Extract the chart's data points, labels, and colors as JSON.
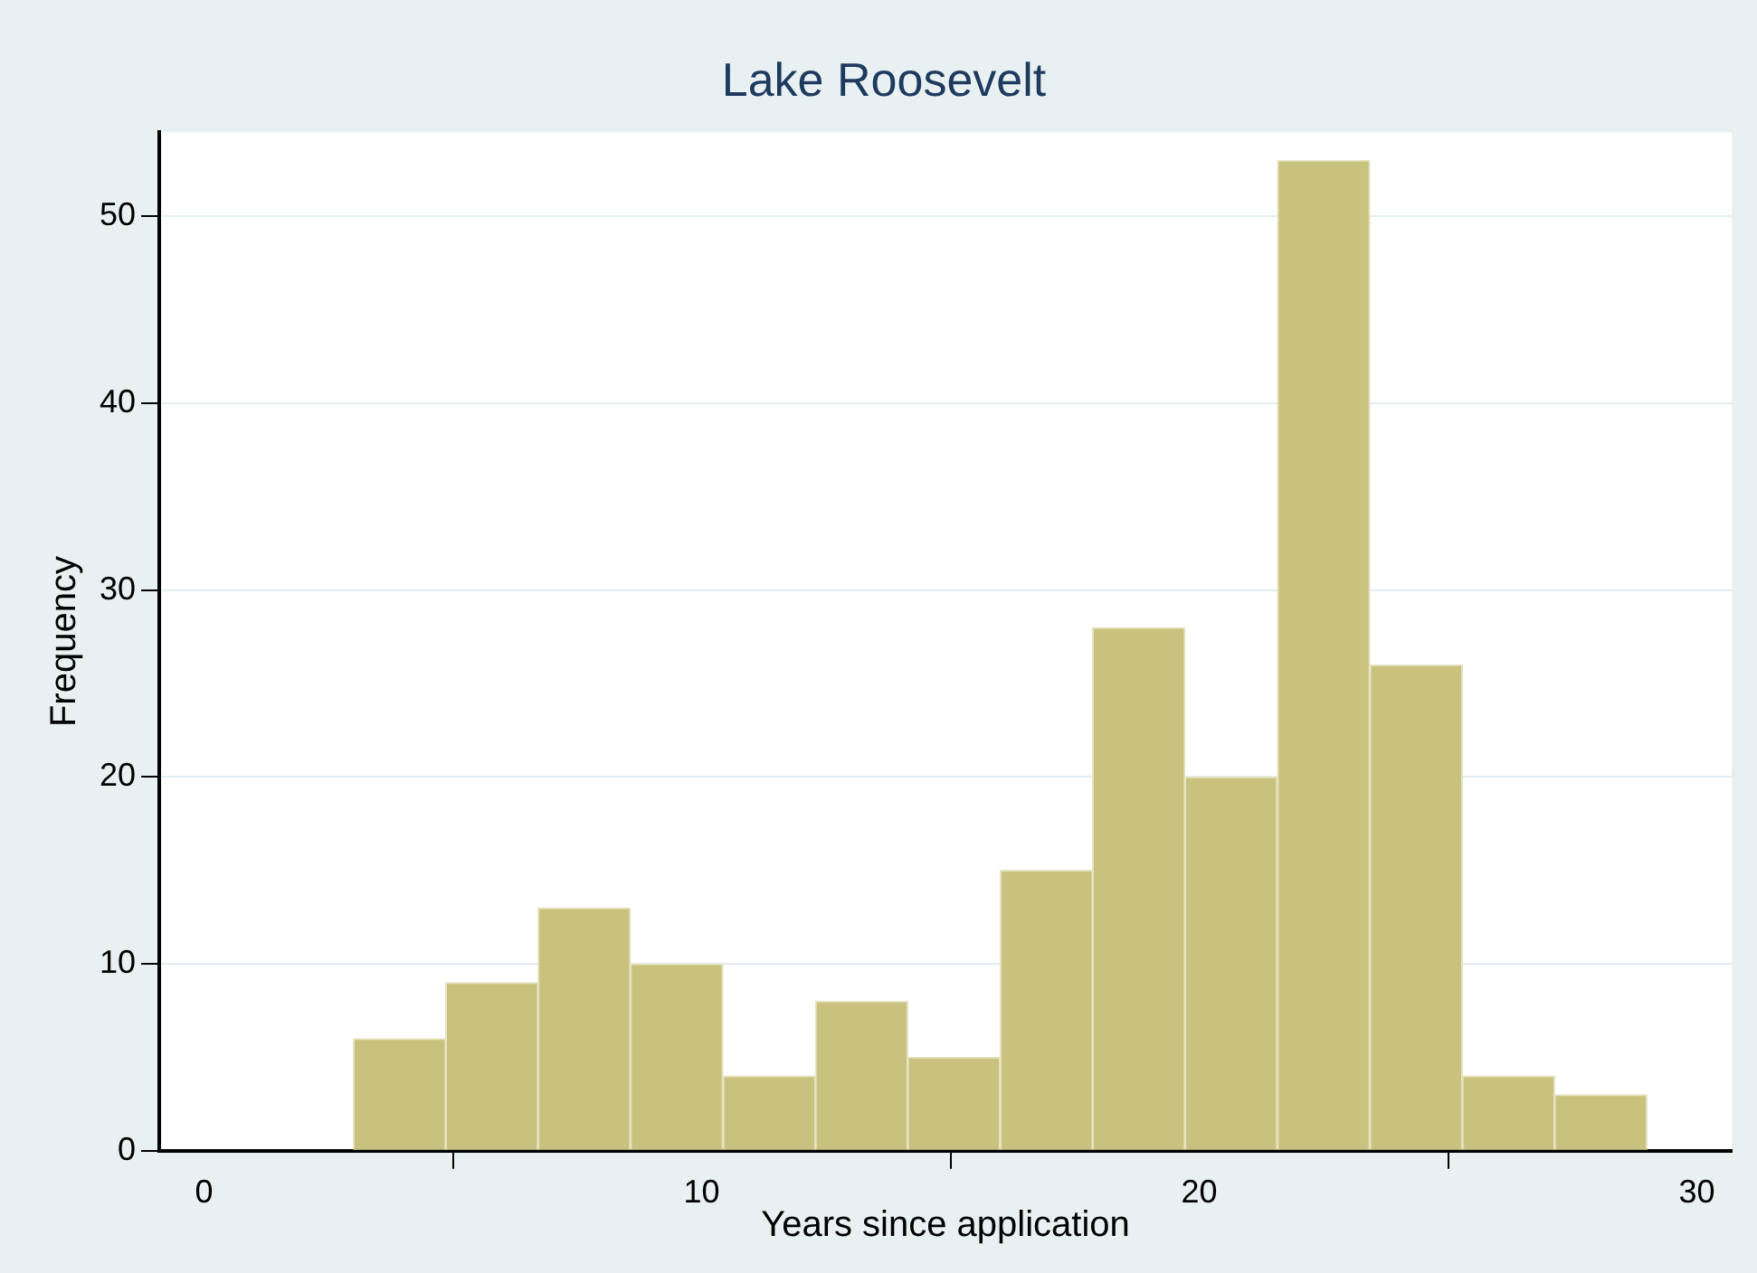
{
  "chart_data": {
    "type": "histogram",
    "title": "Lake Roosevelt",
    "xlabel": "Years since application",
    "ylabel": "Frequency",
    "bins": [
      3,
      4.86,
      6.71,
      8.57,
      10.43,
      12.29,
      14.14,
      16,
      17.86,
      19.71,
      21.57,
      23.43,
      25.29,
      27.14,
      29
    ],
    "values": [
      6,
      9,
      13,
      10,
      4,
      8,
      5,
      15,
      28,
      20,
      53,
      26,
      4,
      3
    ],
    "color": "#c9c27f",
    "xlim": [
      -0.9,
      30.7
    ],
    "xticks": [
      0,
      10,
      20,
      30
    ],
    "ylim": [
      0,
      54.5
    ],
    "yticks": [
      0,
      10,
      20,
      30,
      40,
      50
    ],
    "grid": "y",
    "legend": false
  }
}
